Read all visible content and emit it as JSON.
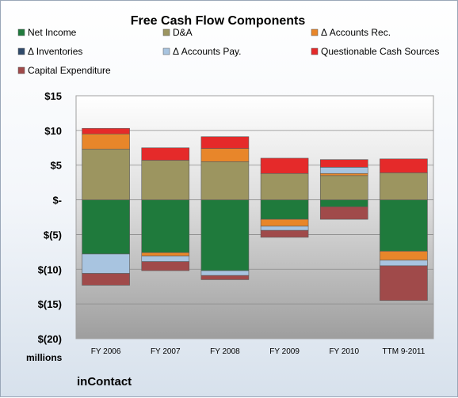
{
  "brand": "inContact",
  "chart_data": {
    "type": "bar",
    "stacked": true,
    "title": "Free Cash Flow Components",
    "unit_label": "millions",
    "categories": [
      "FY 2006",
      "FY 2007",
      "FY 2008",
      "FY 2009",
      "FY 2010",
      "TTM 9-2011"
    ],
    "ylim": [
      -20,
      15
    ],
    "yticks": [
      15,
      10,
      5,
      0,
      -5,
      -10,
      -15,
      -20
    ],
    "ytick_labels": [
      "$15",
      "$10",
      "$5",
      "$-",
      "$(5)",
      "$(10)",
      "$(15)",
      "$(20)"
    ],
    "grid": true,
    "legend_position": "top",
    "series": [
      {
        "name": "Net Income",
        "color": "#1f7a3c",
        "values": [
          -7.8,
          -7.6,
          -10.2,
          -2.8,
          -1.0,
          -7.4
        ]
      },
      {
        "name": "D&A",
        "color": "#9c9560",
        "values": [
          7.3,
          5.7,
          5.5,
          3.8,
          3.5,
          3.9
        ]
      },
      {
        "name": "Δ Accounts Rec.",
        "color": "#e8862a",
        "values": [
          2.2,
          -0.5,
          1.9,
          -1.0,
          0.3,
          -1.3
        ]
      },
      {
        "name": "Δ Inventories",
        "color": "#2f4a6b",
        "values": [
          0,
          0,
          0,
          0,
          0,
          0
        ]
      },
      {
        "name": "Δ Accounts Pay.",
        "color": "#a8c4e0",
        "values": [
          -2.8,
          -0.8,
          -0.7,
          -0.6,
          0.9,
          -0.8
        ]
      },
      {
        "name": "Questionable Cash Sources",
        "color": "#e52a2a",
        "values": [
          0.8,
          1.8,
          1.7,
          2.2,
          1.1,
          2.0
        ]
      },
      {
        "name": "Capital Expenditure",
        "color": "#a04a4a",
        "values": [
          -1.7,
          -1.3,
          -0.6,
          -1.0,
          -1.8,
          -5.0
        ]
      }
    ]
  }
}
